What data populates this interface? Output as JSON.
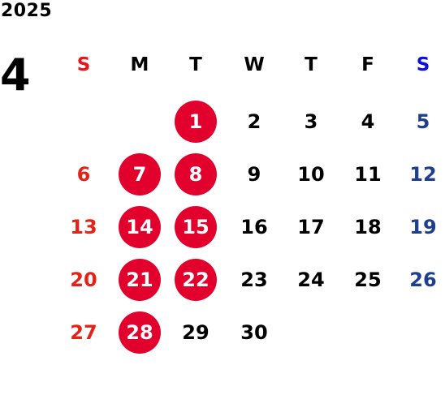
{
  "year": "2025",
  "month": "4",
  "weekdays": [
    "S",
    "M",
    "T",
    "W",
    "T",
    "F",
    "S"
  ],
  "weeks": [
    [
      null,
      null,
      1,
      2,
      3,
      4,
      5
    ],
    [
      6,
      7,
      8,
      9,
      10,
      11,
      12
    ],
    [
      13,
      14,
      15,
      16,
      17,
      18,
      19
    ],
    [
      20,
      21,
      22,
      23,
      24,
      25,
      26
    ],
    [
      27,
      28,
      29,
      30,
      null,
      null,
      null
    ]
  ],
  "highlighted_days": [
    1,
    7,
    8,
    14,
    15,
    21,
    22,
    28
  ],
  "colors": {
    "text": "#000000",
    "sunday_header": "#e8141e",
    "saturday_header": "#0a10e0",
    "sunday": "#e2231a",
    "saturday": "#1e3f8f",
    "highlight": "#e2002d",
    "highlight_text": "#ffffff"
  }
}
